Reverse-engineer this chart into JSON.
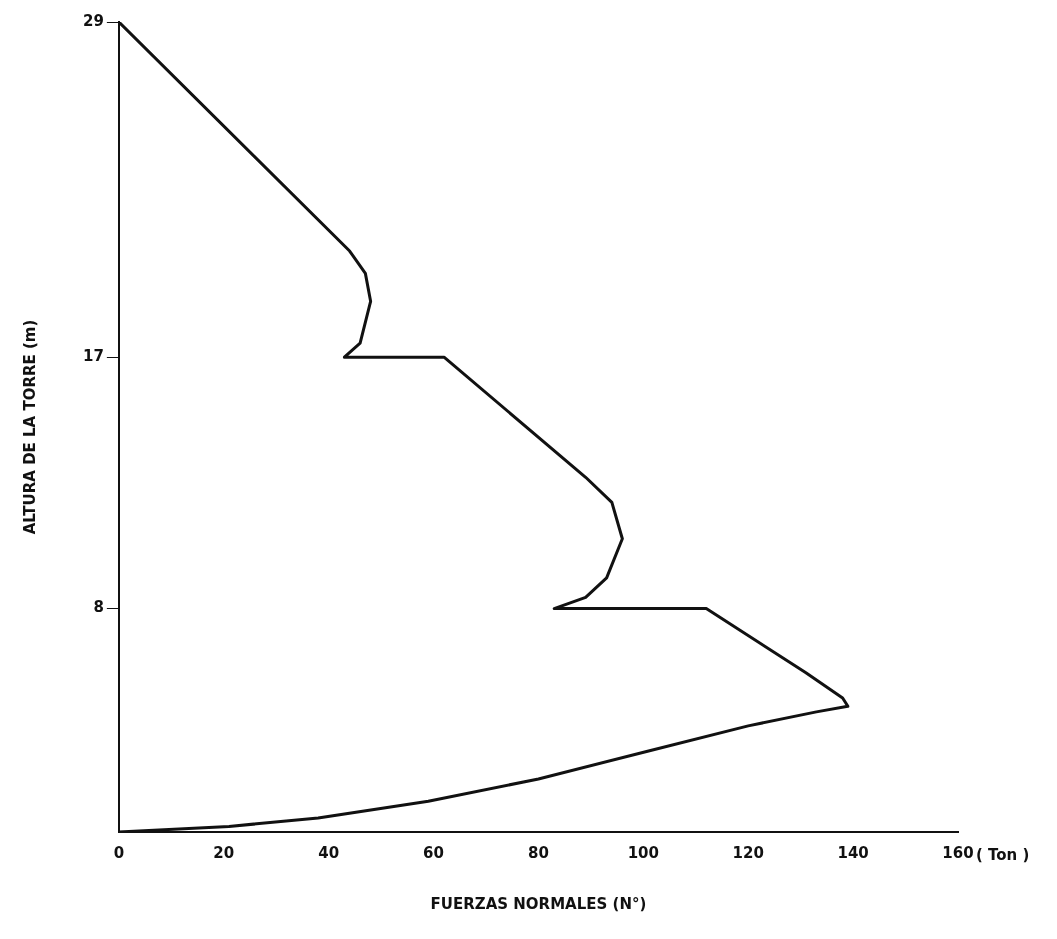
{
  "chart_data": {
    "type": "line",
    "xlabel": "FUERZAS NORMALES (N°)",
    "ylabel": "ALTURA DE LA TORRE (m)",
    "annotations": [
      "( Ton )"
    ],
    "xlim": [
      0,
      160
    ],
    "xticks": [
      0,
      20,
      40,
      60,
      80,
      100,
      120,
      140,
      160
    ],
    "ylim": [
      0,
      29
    ],
    "yticks": [
      8,
      17,
      29
    ],
    "grid": false,
    "marker": "none",
    "line_style": "solid",
    "series": [
      {
        "color": "#111111",
        "x": [
          0,
          21,
          38,
          59,
          80,
          101,
          120,
          133,
          139,
          138,
          131,
          112,
          83,
          89,
          93,
          96,
          94,
          89,
          62,
          43,
          46,
          48,
          47,
          44,
          0
        ],
        "values": [
          0,
          0.2,
          0.5,
          1.1,
          1.9,
          2.9,
          3.8,
          4.3,
          4.5,
          4.8,
          5.7,
          8,
          8,
          8.4,
          9.1,
          10.5,
          11.8,
          12.7,
          17,
          17,
          17.5,
          19,
          20,
          20.8,
          29
        ]
      }
    ]
  }
}
